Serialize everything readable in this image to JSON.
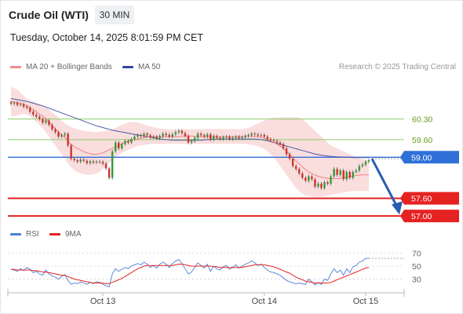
{
  "header": {
    "instrument": "Crude Oil (WTI)",
    "timeframe": "30 MIN",
    "datetime": "Tuesday, October 14, 2025 8:01:59 PM CET"
  },
  "legend": {
    "ma20_label": "MA 20 + Bollinger Bands",
    "ma50_label": "MA 50",
    "rsi_label": "RSI",
    "ma9_label": "9MA"
  },
  "credit": "Research © 2025 Trading Central",
  "colors": {
    "bollinger_fill": "#f8cfcf",
    "ma20": "#f08080",
    "ma50": "#4a5aa8",
    "candle_up": "#2e9d3a",
    "candle_down": "#d0342c",
    "support": "#e52222",
    "resistance": "#8fcf6f",
    "pivot": "#2f6fd8",
    "forecast_arrow": "#2a5cb0",
    "rsi": "#4a7fd6",
    "rsi_ma": "#e52222"
  },
  "chart_data": [
    {
      "type": "candlestick",
      "x_labels": [
        "Oct 13",
        "Oct 14",
        "Oct 15"
      ],
      "levels": [
        {
          "value": 60.3,
          "label": "60.30",
          "kind": "resistance"
        },
        {
          "value": 59.6,
          "label": "59.60",
          "kind": "resistance"
        },
        {
          "value": 59.0,
          "label": "59.00",
          "kind": "pivot"
        },
        {
          "value": 57.6,
          "label": "57.60",
          "kind": "support"
        },
        {
          "value": 57.0,
          "label": "57.00",
          "kind": "support"
        }
      ],
      "ylim": [
        56.95,
        61.6
      ],
      "close": [
        60.82,
        60.85,
        60.78,
        60.8,
        60.72,
        60.68,
        60.55,
        60.45,
        60.38,
        60.3,
        60.18,
        60.25,
        60.1,
        59.95,
        59.85,
        59.7,
        59.75,
        59.8,
        59.4,
        58.95,
        58.9,
        58.85,
        58.92,
        58.88,
        58.8,
        58.86,
        58.82,
        58.85,
        58.84,
        58.78,
        58.62,
        58.3,
        59.2,
        59.5,
        59.3,
        59.45,
        59.55,
        59.5,
        59.62,
        59.7,
        59.75,
        59.72,
        59.8,
        59.75,
        59.68,
        59.7,
        59.65,
        59.72,
        59.8,
        59.76,
        59.7,
        59.78,
        59.85,
        59.9,
        59.82,
        59.72,
        59.5,
        59.55,
        59.66,
        59.8,
        59.75,
        59.7,
        59.78,
        59.6,
        59.72,
        59.66,
        59.62,
        59.68,
        59.7,
        59.62,
        59.66,
        59.7,
        59.65,
        59.68,
        59.72,
        59.75,
        59.8,
        59.78,
        59.74,
        59.76,
        59.7,
        59.62,
        59.58,
        59.55,
        59.5,
        59.45,
        59.3,
        59.1,
        58.95,
        58.7,
        58.6,
        58.45,
        58.3,
        58.2,
        58.35,
        58.25,
        58.0,
        58.1,
        57.95,
        58.15,
        58.1,
        58.35,
        58.6,
        58.4,
        58.55,
        58.25,
        58.5,
        58.3,
        58.5,
        58.55,
        58.7,
        58.75,
        58.85,
        58.9
      ],
      "ma20": [
        60.9,
        60.88,
        60.86,
        60.84,
        60.8,
        60.75,
        60.7,
        60.62,
        60.55,
        60.47,
        60.4,
        60.32,
        60.2,
        60.08,
        59.97,
        59.86,
        59.76,
        59.67,
        59.55,
        59.44,
        59.36,
        59.3,
        59.24,
        59.19,
        59.15,
        59.12,
        59.1,
        59.1,
        59.12,
        59.15,
        59.2,
        59.25,
        59.3,
        59.35,
        59.4,
        59.45,
        59.5,
        59.55,
        59.58,
        59.6,
        59.62,
        59.64,
        59.66,
        59.68,
        59.7,
        59.7,
        59.7,
        59.7,
        59.7,
        59.7,
        59.7,
        59.7,
        59.7,
        59.7,
        59.71,
        59.72,
        59.72,
        59.72,
        59.71,
        59.7,
        59.7,
        59.7,
        59.7,
        59.7,
        59.7,
        59.7,
        59.7,
        59.7,
        59.7,
        59.7,
        59.7,
        59.7,
        59.7,
        59.7,
        59.72,
        59.72,
        59.72,
        59.7,
        59.7,
        59.68,
        59.65,
        59.6,
        59.55,
        59.5,
        59.45,
        59.38,
        59.3,
        59.2,
        59.1,
        58.98,
        58.87,
        58.77,
        58.67,
        58.58,
        58.5,
        58.45,
        58.4,
        58.35,
        58.32,
        58.3,
        58.28,
        58.27,
        58.27,
        58.27,
        58.28,
        58.3,
        58.32,
        58.34,
        58.36,
        58.38,
        58.39,
        58.4,
        58.4,
        58.4
      ],
      "ma50": [
        61.0,
        60.98,
        60.96,
        60.94,
        60.92,
        60.9,
        60.87,
        60.84,
        60.81,
        60.78,
        60.75,
        60.71,
        60.67,
        60.63,
        60.59,
        60.55,
        60.51,
        60.47,
        60.43,
        60.39,
        60.35,
        60.31,
        60.27,
        60.23,
        60.19,
        60.15,
        60.11,
        60.07,
        60.04,
        60.01,
        59.98,
        59.95,
        59.92,
        59.9,
        59.88,
        59.86,
        59.84,
        59.82,
        59.8,
        59.78,
        59.76,
        59.74,
        59.72,
        59.7,
        59.68,
        59.66,
        59.64,
        59.62,
        59.61,
        59.6,
        59.59,
        59.58,
        59.58,
        59.58,
        59.58,
        59.58,
        59.58,
        59.58,
        59.58,
        59.58,
        59.58,
        59.59,
        59.6,
        59.6,
        59.61,
        59.62,
        59.62,
        59.62,
        59.62,
        59.62,
        59.62,
        59.62,
        59.62,
        59.62,
        59.62,
        59.62,
        59.62,
        59.62,
        59.61,
        59.6,
        59.58,
        59.56,
        59.53,
        59.5,
        59.47,
        59.44,
        59.41,
        59.38,
        59.35,
        59.32,
        59.29,
        59.26,
        59.23,
        59.2,
        59.17,
        59.14,
        59.11,
        59.09,
        59.07,
        59.05,
        59.04,
        59.03,
        59.02,
        59.01,
        59.01,
        59.0,
        59.0,
        59.0,
        58.99,
        58.99,
        58.99,
        58.99,
        58.99,
        58.99
      ],
      "bb_upper": [
        61.4,
        61.35,
        61.3,
        61.2,
        61.1,
        61.0,
        60.95,
        60.9,
        60.85,
        60.8,
        60.75,
        60.7,
        60.62,
        60.54,
        60.45,
        60.35,
        60.25,
        60.15,
        60.08,
        60.02,
        59.98,
        59.95,
        59.92,
        59.9,
        59.88,
        59.87,
        59.86,
        59.86,
        59.87,
        59.88,
        59.9,
        59.92,
        59.96,
        60.0,
        60.05,
        60.1,
        60.14,
        60.18,
        60.2,
        60.2,
        60.18,
        60.15,
        60.12,
        60.08,
        60.05,
        60.02,
        60.0,
        59.98,
        59.97,
        59.96,
        59.95,
        59.95,
        59.95,
        59.95,
        59.95,
        59.95,
        59.95,
        59.95,
        59.95,
        59.95,
        59.96,
        59.96,
        59.96,
        59.96,
        59.96,
        59.96,
        59.96,
        59.96,
        59.96,
        59.96,
        59.96,
        59.96,
        59.96,
        59.96,
        59.98,
        60.0,
        60.05,
        60.1,
        60.15,
        60.2,
        60.25,
        60.3,
        60.33,
        60.35,
        60.36,
        60.36,
        60.36,
        60.36,
        60.36,
        60.36,
        60.36,
        60.35,
        60.3,
        60.2,
        60.1,
        60.0,
        59.9,
        59.8,
        59.7,
        59.6,
        59.5,
        59.4,
        59.35,
        59.3,
        59.25,
        59.2,
        59.15,
        59.1,
        59.05,
        59.0,
        58.96,
        58.93,
        58.9,
        58.88
      ],
      "bb_lower": [
        60.4,
        60.4,
        60.42,
        60.45,
        60.48,
        60.45,
        60.4,
        60.3,
        60.2,
        60.1,
        59.98,
        59.86,
        59.7,
        59.55,
        59.4,
        59.25,
        59.1,
        58.95,
        58.8,
        58.65,
        58.55,
        58.5,
        58.45,
        58.42,
        58.4,
        58.4,
        58.42,
        58.45,
        58.5,
        58.6,
        58.7,
        58.8,
        58.9,
        59.0,
        59.08,
        59.15,
        59.2,
        59.25,
        59.3,
        59.35,
        59.38,
        59.4,
        59.42,
        59.44,
        59.45,
        59.46,
        59.46,
        59.46,
        59.46,
        59.46,
        59.46,
        59.46,
        59.46,
        59.46,
        59.46,
        59.46,
        59.46,
        59.46,
        59.46,
        59.46,
        59.46,
        59.46,
        59.46,
        59.46,
        59.46,
        59.46,
        59.46,
        59.46,
        59.46,
        59.46,
        59.46,
        59.46,
        59.46,
        59.46,
        59.45,
        59.44,
        59.42,
        59.4,
        59.37,
        59.33,
        59.28,
        59.2,
        59.1,
        58.98,
        58.85,
        58.7,
        58.55,
        58.4,
        58.25,
        58.1,
        57.95,
        57.85,
        57.76,
        57.7,
        57.68,
        57.66,
        57.65,
        57.65,
        57.66,
        57.68,
        57.7,
        57.72,
        57.74,
        57.76,
        57.78,
        57.8,
        57.82,
        57.84,
        57.85,
        57.85,
        57.85,
        57.85,
        57.85,
        57.85
      ],
      "forecast": {
        "from": 58.95,
        "to": 57.1
      }
    },
    {
      "type": "line",
      "name": "RSI",
      "yticks": [
        70,
        50,
        30
      ],
      "ylim": [
        15,
        85
      ],
      "x_labels": [
        "Oct 13",
        "Oct 14",
        "Oct 15"
      ],
      "rsi": [
        45,
        44,
        42,
        46,
        43,
        48,
        45,
        40,
        42,
        38,
        36,
        44,
        38,
        35,
        33,
        30,
        34,
        37,
        28,
        22,
        24,
        23,
        26,
        24,
        22,
        25,
        23,
        26,
        25,
        22,
        20,
        18,
        38,
        46,
        42,
        45,
        48,
        46,
        50,
        52,
        54,
        52,
        56,
        53,
        48,
        51,
        47,
        53,
        56,
        53,
        48,
        54,
        58,
        60,
        54,
        46,
        38,
        41,
        48,
        55,
        51,
        47,
        53,
        42,
        50,
        46,
        44,
        49,
        51,
        45,
        48,
        52,
        47,
        50,
        53,
        55,
        58,
        55,
        51,
        53,
        48,
        44,
        41,
        40,
        38,
        36,
        32,
        28,
        26,
        24,
        23,
        24,
        23,
        22,
        30,
        26,
        21,
        25,
        22,
        30,
        28,
        38,
        46,
        40,
        44,
        36,
        46,
        40,
        49,
        51,
        56,
        58,
        62,
        62
      ],
      "ma9": [
        45,
        45,
        44,
        44,
        44,
        44,
        44,
        43,
        43,
        42,
        41,
        41,
        40,
        39,
        38,
        37,
        36,
        36,
        34,
        32,
        30,
        29,
        28,
        27,
        26,
        25,
        24,
        24,
        24,
        24,
        23,
        23,
        25,
        27,
        29,
        31,
        34,
        37,
        40,
        43,
        46,
        48,
        50,
        51,
        51,
        51,
        51,
        51,
        51,
        51,
        51,
        51,
        52,
        53,
        53,
        52,
        51,
        50,
        50,
        50,
        50,
        50,
        50,
        50,
        49,
        49,
        48,
        48,
        48,
        48,
        48,
        48,
        48,
        48,
        49,
        50,
        51,
        52,
        52,
        52,
        52,
        51,
        50,
        49,
        47,
        45,
        43,
        41,
        39,
        36,
        33,
        31,
        29,
        27,
        26,
        25,
        24,
        24,
        24,
        24,
        24,
        25,
        27,
        29,
        31,
        33,
        35,
        37,
        39,
        41,
        43,
        45,
        47,
        48
      ]
    }
  ]
}
